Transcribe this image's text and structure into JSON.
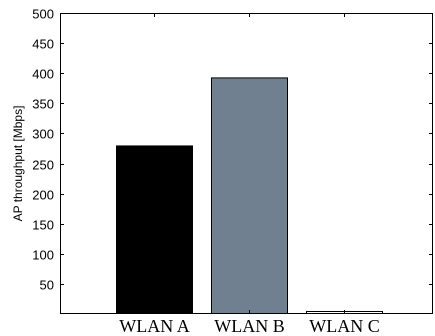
{
  "chart_data": {
    "type": "bar",
    "title": "",
    "xlabel": "",
    "ylabel": "AP throughput [Mbps]",
    "categories": [
      "WLAN A",
      "WLAN B",
      "WLAN C"
    ],
    "values": [
      280,
      393,
      5
    ],
    "bar_colors": [
      "#000000",
      "#708090",
      "#ffffff"
    ],
    "ylim": [
      0,
      500
    ],
    "yticks": [
      50,
      100,
      150,
      200,
      250,
      300,
      350,
      400,
      450,
      500
    ],
    "ytick_labels": [
      "50",
      "100",
      "150",
      "200",
      "250",
      "300",
      "350",
      "400",
      "450",
      "500"
    ],
    "grid": false,
    "legend": "none"
  }
}
